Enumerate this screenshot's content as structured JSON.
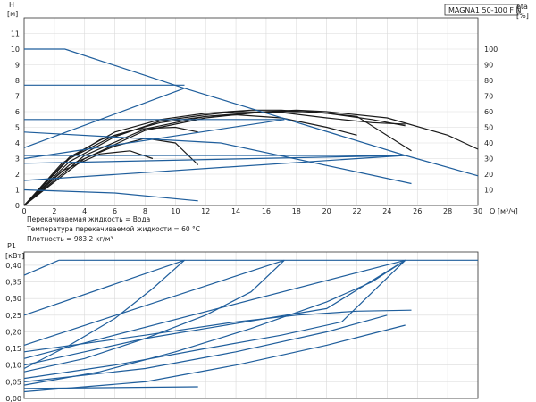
{
  "chart_data": [
    {
      "type": "line",
      "title": "MAGNA1 50-100 F N",
      "xlabel": "Q [м³/ч]",
      "ylabel": "H [м]",
      "ylabel2": "eta [%]",
      "xlim": [
        0,
        30
      ],
      "ylim": [
        0,
        12
      ],
      "y2lim": [
        0,
        120
      ],
      "xticks": [
        0,
        2,
        4,
        6,
        8,
        10,
        12,
        14,
        16,
        18,
        20,
        22,
        24,
        26,
        28,
        30
      ],
      "yticks": [
        0,
        1,
        2,
        3,
        4,
        5,
        6,
        7,
        8,
        9,
        10,
        11
      ],
      "y2ticks": [
        10,
        20,
        30,
        40,
        50,
        60,
        70,
        80,
        90,
        100
      ],
      "grid": true,
      "notes": [
        "Перекачиваемая жидкость = Вода",
        "Температура перекачиваемой жидкости = 60 °C",
        "Плотность = 983.2 кг/м³"
      ],
      "head_series": [
        {
          "values": [
            [
              0,
              10
            ],
            [
              2.7,
              10
            ],
            [
              10.6,
              7.5
            ],
            [
              25.2,
              3.2
            ],
            [
              30,
              1.9
            ]
          ]
        },
        {
          "values": [
            [
              0,
              7.7
            ],
            [
              10.6,
              7.7
            ]
          ]
        },
        {
          "values": [
            [
              0,
              5.5
            ],
            [
              17.2,
              5.5
            ]
          ]
        },
        {
          "values": [
            [
              0,
              3.2
            ],
            [
              25.2,
              3.2
            ]
          ]
        },
        {
          "values": [
            [
              0,
              3.7
            ],
            [
              10.6,
              7.5
            ]
          ]
        },
        {
          "values": [
            [
              0,
              4.7
            ],
            [
              13,
              4.0
            ],
            [
              25.6,
              1.4
            ]
          ]
        },
        {
          "values": [
            [
              0,
              2.7
            ],
            [
              25.2,
              3.2
            ]
          ]
        },
        {
          "values": [
            [
              0,
              1.6
            ],
            [
              25.2,
              3.2
            ]
          ]
        },
        {
          "values": [
            [
              0,
              1.0
            ],
            [
              6,
              0.8
            ],
            [
              11.5,
              0.3
            ]
          ]
        },
        {
          "values": [
            [
              0,
              3.0
            ],
            [
              17.2,
              5.5
            ]
          ]
        }
      ],
      "eta_series": [
        {
          "values": [
            [
              0,
              0
            ],
            [
              4,
              30
            ],
            [
              8,
              48
            ],
            [
              12,
              56
            ],
            [
              16,
              60
            ],
            [
              18,
              61
            ],
            [
              20,
              60
            ],
            [
              24,
              56
            ],
            [
              28,
              45
            ],
            [
              30,
              36
            ]
          ]
        },
        {
          "values": [
            [
              0,
              0
            ],
            [
              4,
              32
            ],
            [
              8,
              49
            ],
            [
              12,
              57
            ],
            [
              16,
              60
            ],
            [
              19,
              60
            ],
            [
              22,
              57
            ],
            [
              25.6,
              35
            ]
          ]
        },
        {
          "values": [
            [
              0,
              0
            ],
            [
              3,
              28
            ],
            [
              6,
              44
            ],
            [
              9,
              54
            ],
            [
              12,
              58
            ],
            [
              14,
              60
            ],
            [
              17,
              59.5
            ],
            [
              20,
              56
            ],
            [
              23,
              53
            ],
            [
              25.2,
              52
            ]
          ]
        },
        {
          "values": [
            [
              0,
              0
            ],
            [
              3,
              30
            ],
            [
              6,
              45
            ],
            [
              9,
              53
            ],
            [
              12,
              57
            ],
            [
              14,
              58
            ],
            [
              17,
              56
            ],
            [
              20,
              50
            ],
            [
              22,
              45
            ]
          ]
        },
        {
          "values": [
            [
              0,
              0
            ],
            [
              3,
              31
            ],
            [
              6,
              47
            ],
            [
              9,
              55
            ],
            [
              12,
              59
            ],
            [
              15,
              61
            ],
            [
              17,
              61
            ],
            [
              20,
              59
            ],
            [
              23,
              55
            ],
            [
              25.2,
              51
            ]
          ]
        },
        {
          "values": [
            [
              0,
              0
            ],
            [
              2.5,
              27
            ],
            [
              5,
              42
            ],
            [
              7.5,
              49
            ],
            [
              10,
              50
            ],
            [
              11.5,
              47
            ]
          ]
        },
        {
          "values": [
            [
              0,
              0
            ],
            [
              3,
              26
            ],
            [
              6,
              38
            ],
            [
              8,
              43
            ],
            [
              10,
              40
            ],
            [
              11.5,
              26
            ]
          ]
        },
        {
          "values": [
            [
              0,
              0
            ],
            [
              2.5,
              22
            ],
            [
              5,
              33
            ],
            [
              7,
              35
            ],
            [
              8.5,
              30
            ]
          ]
        }
      ]
    },
    {
      "type": "line",
      "ylabel": "P1 [кВт]",
      "xlim": [
        0,
        30
      ],
      "ylim": [
        0,
        0.44
      ],
      "yticks": [
        "0,00",
        "0,05",
        "0,10",
        "0,15",
        "0,20",
        "0,25",
        "0,30",
        "0,35",
        "0,40"
      ],
      "ytick_values": [
        0,
        0.05,
        0.1,
        0.15,
        0.2,
        0.25,
        0.3,
        0.35,
        0.4
      ],
      "grid": true,
      "series": [
        {
          "values": [
            [
              2.3,
              0.415
            ],
            [
              30,
              0.415
            ]
          ]
        },
        {
          "values": [
            [
              0,
              0.37
            ],
            [
              2.3,
              0.415
            ]
          ]
        },
        {
          "values": [
            [
              0,
              0.25
            ],
            [
              10.6,
              0.415
            ]
          ]
        },
        {
          "values": [
            [
              0,
              0.16
            ],
            [
              17.2,
              0.415
            ]
          ]
        },
        {
          "values": [
            [
              0,
              0.12
            ],
            [
              25.2,
              0.415
            ]
          ]
        },
        {
          "values": [
            [
              0,
              0.09
            ],
            [
              3,
              0.16
            ],
            [
              6,
              0.24
            ],
            [
              8.5,
              0.33
            ],
            [
              10.6,
              0.415
            ]
          ]
        },
        {
          "values": [
            [
              0,
              0.08
            ],
            [
              4,
              0.12
            ],
            [
              8,
              0.18
            ],
            [
              12,
              0.25
            ],
            [
              15,
              0.32
            ],
            [
              17.2,
              0.415
            ]
          ]
        },
        {
          "values": [
            [
              0,
              0.04
            ],
            [
              5,
              0.08
            ],
            [
              10,
              0.14
            ],
            [
              15,
              0.21
            ],
            [
              20,
              0.29
            ],
            [
              23,
              0.35
            ],
            [
              25.2,
              0.415
            ]
          ]
        },
        {
          "values": [
            [
              0,
              0.1
            ],
            [
              4,
              0.14
            ],
            [
              8,
              0.18
            ],
            [
              12,
              0.21
            ],
            [
              16,
              0.24
            ],
            [
              20,
              0.27
            ],
            [
              25.2,
              0.415
            ]
          ]
        },
        {
          "values": [
            [
              0,
              0.06
            ],
            [
              6,
              0.1
            ],
            [
              12,
              0.15
            ],
            [
              17,
              0.19
            ],
            [
              21,
              0.23
            ],
            [
              25.2,
              0.415
            ]
          ]
        },
        {
          "values": [
            [
              0,
              0.02
            ],
            [
              8,
              0.05
            ],
            [
              14,
              0.1
            ],
            [
              20,
              0.16
            ],
            [
              25.2,
              0.22
            ]
          ]
        },
        {
          "values": [
            [
              0,
              0.14
            ],
            [
              8,
              0.19
            ],
            [
              14,
              0.23
            ],
            [
              18,
              0.25
            ],
            [
              22,
              0.262
            ],
            [
              25.6,
              0.265
            ]
          ]
        },
        {
          "values": [
            [
              0,
              0.05
            ],
            [
              8,
              0.09
            ],
            [
              14,
              0.14
            ],
            [
              20,
              0.2
            ],
            [
              24,
              0.25
            ]
          ]
        },
        {
          "values": [
            [
              0,
              0.03
            ],
            [
              11.5,
              0.035
            ]
          ]
        }
      ]
    }
  ]
}
